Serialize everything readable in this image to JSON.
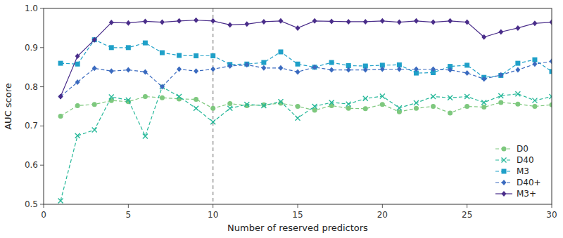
{
  "chart_data": {
    "type": "line",
    "xlabel": "Number of reserved predictors",
    "ylabel": "AUC score",
    "xlim": [
      0,
      30
    ],
    "ylim": [
      0.5,
      1.0
    ],
    "xticks": [
      0,
      5,
      10,
      15,
      20,
      25,
      30
    ],
    "yticks": [
      0.5,
      0.6,
      0.7,
      0.8,
      0.9,
      {
        "value": 1.0,
        "label": "1.0"
      }
    ],
    "vline_x": 10,
    "grid": false,
    "legend": "lower right",
    "x": [
      1,
      2,
      3,
      4,
      5,
      6,
      7,
      8,
      9,
      10,
      11,
      12,
      13,
      14,
      15,
      16,
      17,
      18,
      19,
      20,
      21,
      22,
      23,
      24,
      25,
      26,
      27,
      28,
      29,
      30
    ],
    "series": [
      {
        "name": "D0",
        "color": "#7ec87e",
        "marker": "circle",
        "line_style": "dashed",
        "values": [
          0.725,
          0.752,
          0.755,
          0.765,
          0.762,
          0.775,
          0.772,
          0.769,
          0.768,
          0.745,
          0.757,
          0.752,
          0.754,
          0.758,
          0.75,
          0.74,
          0.752,
          0.745,
          0.744,
          0.755,
          0.736,
          0.745,
          0.75,
          0.733,
          0.75,
          0.748,
          0.76,
          0.756,
          0.75,
          0.754
        ]
      },
      {
        "name": "D40",
        "color": "#26b899",
        "marker": "x",
        "line_style": "dashed",
        "values": [
          0.509,
          0.675,
          0.69,
          0.774,
          0.766,
          0.674,
          0.8,
          0.775,
          0.745,
          0.71,
          0.745,
          0.755,
          0.752,
          0.762,
          0.72,
          0.75,
          0.76,
          0.756,
          0.77,
          0.776,
          0.746,
          0.759,
          0.775,
          0.772,
          0.775,
          0.76,
          0.777,
          0.782,
          0.765,
          0.775
        ]
      },
      {
        "name": "M3",
        "color": "#1fa0c8",
        "marker": "square",
        "line_style": "dashed",
        "values": [
          0.86,
          0.858,
          0.92,
          0.9,
          0.9,
          0.912,
          0.887,
          0.88,
          0.879,
          0.879,
          0.857,
          0.858,
          0.862,
          0.889,
          0.858,
          0.85,
          0.862,
          0.854,
          0.853,
          0.855,
          0.856,
          0.835,
          0.836,
          0.852,
          0.855,
          0.824,
          0.829,
          0.86,
          0.869,
          0.839
        ]
      },
      {
        "name": "D40+",
        "color": "#3a6abf",
        "marker": "diamond",
        "line_style": "dashed",
        "values": [
          0.775,
          0.812,
          0.847,
          0.84,
          0.843,
          0.838,
          0.8,
          0.845,
          0.84,
          0.845,
          0.853,
          0.856,
          0.848,
          0.848,
          0.838,
          0.85,
          0.843,
          0.843,
          0.843,
          0.845,
          0.845,
          0.845,
          0.845,
          0.843,
          0.835,
          0.82,
          0.83,
          0.843,
          0.858,
          0.865
        ]
      },
      {
        "name": "M3+",
        "color": "#4a2d8a",
        "marker": "diamond",
        "line_style": "solid",
        "values": [
          0.775,
          0.878,
          0.92,
          0.964,
          0.963,
          0.967,
          0.965,
          0.968,
          0.97,
          0.968,
          0.958,
          0.96,
          0.966,
          0.968,
          0.95,
          0.968,
          0.967,
          0.966,
          0.966,
          0.968,
          0.965,
          0.968,
          0.965,
          0.968,
          0.965,
          0.927,
          0.94,
          0.95,
          0.962,
          0.965
        ]
      }
    ]
  }
}
